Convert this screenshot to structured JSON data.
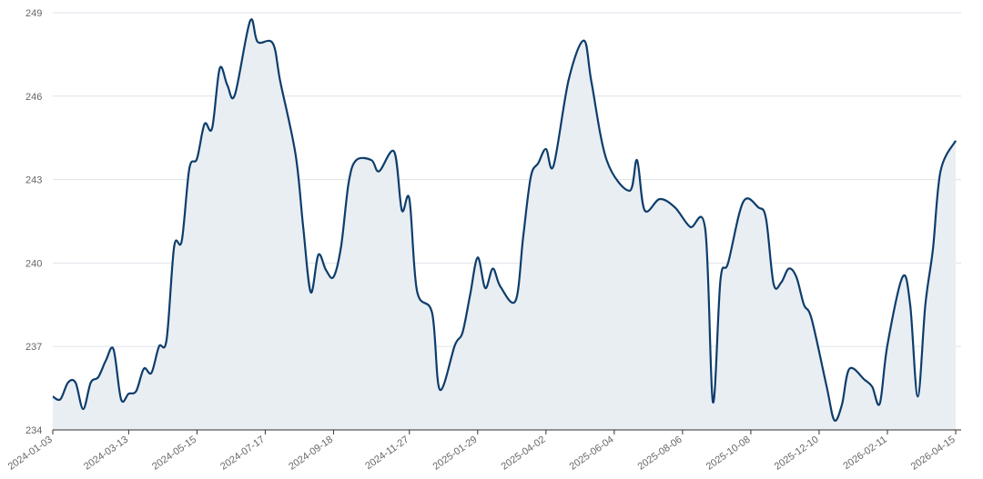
{
  "chart_data": {
    "type": "area",
    "x": [
      "2024-01-03",
      "2024-01-10",
      "2024-01-17",
      "2024-01-24",
      "2024-01-31",
      "2024-02-07",
      "2024-02-14",
      "2024-02-21",
      "2024-02-28",
      "2024-03-06",
      "2024-03-13",
      "2024-03-20",
      "2024-03-27",
      "2024-04-03",
      "2024-04-10",
      "2024-04-17",
      "2024-04-24",
      "2024-05-01",
      "2024-05-08",
      "2024-05-15",
      "2024-05-22",
      "2024-05-29",
      "2024-06-05",
      "2024-06-12",
      "2024-06-19",
      "2024-07-03",
      "2024-07-10",
      "2024-07-24",
      "2024-07-31",
      "2024-08-14",
      "2024-08-21",
      "2024-08-28",
      "2024-09-04",
      "2024-09-11",
      "2024-09-18",
      "2024-09-25",
      "2024-10-02",
      "2024-10-09",
      "2024-10-23",
      "2024-10-30",
      "2024-11-13",
      "2024-11-20",
      "2024-11-27",
      "2024-12-04",
      "2024-12-18",
      "2024-12-25",
      "2025-01-08",
      "2025-01-15",
      "2025-01-22",
      "2025-01-29",
      "2025-02-05",
      "2025-02-12",
      "2025-02-19",
      "2025-03-05",
      "2025-03-12",
      "2025-03-19",
      "2025-03-26",
      "2025-04-02",
      "2025-04-09",
      "2025-04-23",
      "2025-05-07",
      "2025-05-14",
      "2025-05-28",
      "2025-06-18",
      "2025-06-25",
      "2025-07-02",
      "2025-07-16",
      "2025-07-30",
      "2025-08-13",
      "2025-08-27",
      "2025-09-03",
      "2025-09-10",
      "2025-09-17",
      "2025-10-01",
      "2025-10-15",
      "2025-10-22",
      "2025-10-29",
      "2025-11-05",
      "2025-11-12",
      "2025-11-19",
      "2025-11-26",
      "2025-12-03",
      "2025-12-17",
      "2025-12-24",
      "2025-12-31",
      "2026-01-07",
      "2026-01-21",
      "2026-01-28",
      "2026-02-04",
      "2026-02-11",
      "2026-02-25",
      "2026-03-04",
      "2026-03-11",
      "2026-03-18",
      "2026-03-25",
      "2026-04-01",
      "2026-04-15"
    ],
    "series": [
      {
        "color": "#0d3d6b",
        "values": [
          235.2,
          235.1,
          235.7,
          235.7,
          234.75,
          235.7,
          235.9,
          236.5,
          236.9,
          235.1,
          235.3,
          235.4,
          236.2,
          236.05,
          237.0,
          237.25,
          240.6,
          240.8,
          243.4,
          243.75,
          245.0,
          244.85,
          247.0,
          246.4,
          246.05,
          248.7,
          247.95,
          247.9,
          246.5,
          243.9,
          241.3,
          238.95,
          240.3,
          239.75,
          239.5,
          240.6,
          242.9,
          243.7,
          243.7,
          243.3,
          244.0,
          241.9,
          242.3,
          239.0,
          238.2,
          235.45,
          237.05,
          237.5,
          238.85,
          240.2,
          239.1,
          239.8,
          239.15,
          238.65,
          240.95,
          243.1,
          243.6,
          244.1,
          243.5,
          246.6,
          248.0,
          246.5,
          243.7,
          242.6,
          243.7,
          241.9,
          242.3,
          242.0,
          241.3,
          241.2,
          235.0,
          239.4,
          240.0,
          242.2,
          242.0,
          241.6,
          239.25,
          239.3,
          239.8,
          239.5,
          238.5,
          238.0,
          235.55,
          234.35,
          234.9,
          236.2,
          235.8,
          235.55,
          234.95,
          237.05,
          239.5,
          238.5,
          235.2,
          238.5,
          240.5,
          243.3,
          244.4
        ]
      }
    ],
    "xlim": [
      "2024-01-03",
      "2026-04-15"
    ],
    "xticks": [
      "2024-01-03",
      "2024-03-13",
      "2024-05-15",
      "2024-07-17",
      "2024-09-18",
      "2024-11-27",
      "2025-01-29",
      "2025-04-02",
      "2025-06-04",
      "2025-08-06",
      "2025-10-08",
      "2025-12-10",
      "2026-02-11",
      "2026-04-15"
    ],
    "ylim": [
      234,
      249
    ],
    "yticks": [
      234,
      237,
      240,
      243,
      246,
      249
    ],
    "grid": true,
    "fill": "#e9eef3"
  }
}
